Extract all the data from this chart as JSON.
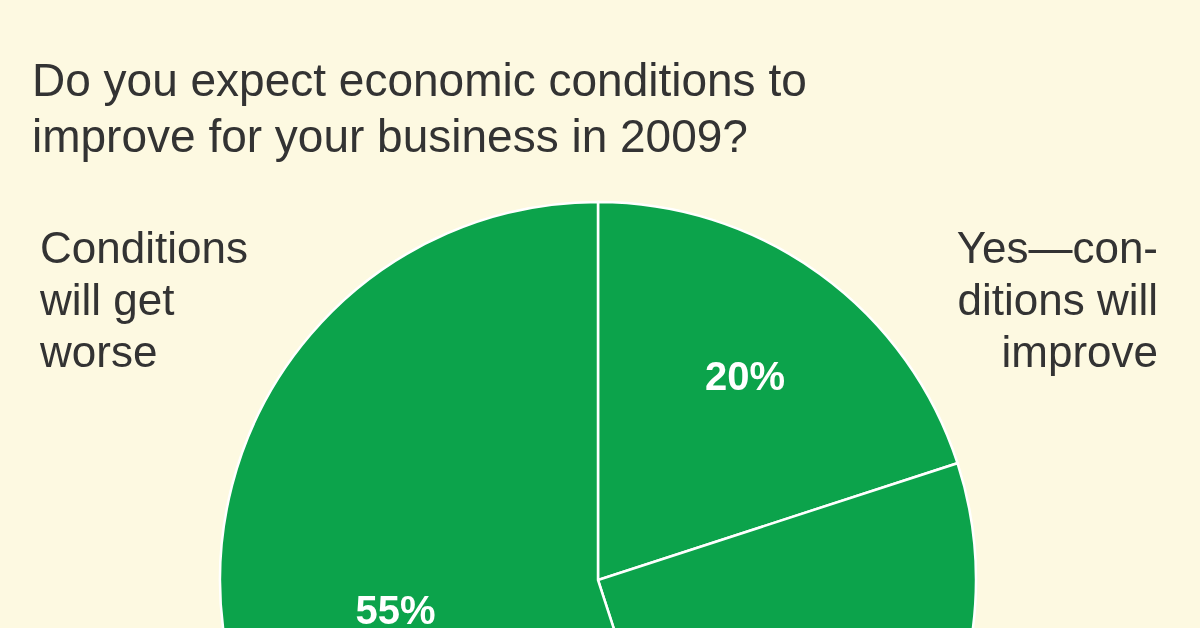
{
  "chart_data": {
    "type": "pie",
    "title": "Do you expect economic conditions to\nimprove for your business in 2009?",
    "categories": [
      "Yes—con-\nditions will\nimprove",
      null,
      "Conditions\nwill get\nworse"
    ],
    "values": [
      20,
      25,
      55
    ],
    "colors": [
      "#0ca34b",
      "#0ca34b",
      "#0ca34b"
    ],
    "value_labels": [
      "20%",
      null,
      "55%"
    ]
  }
}
